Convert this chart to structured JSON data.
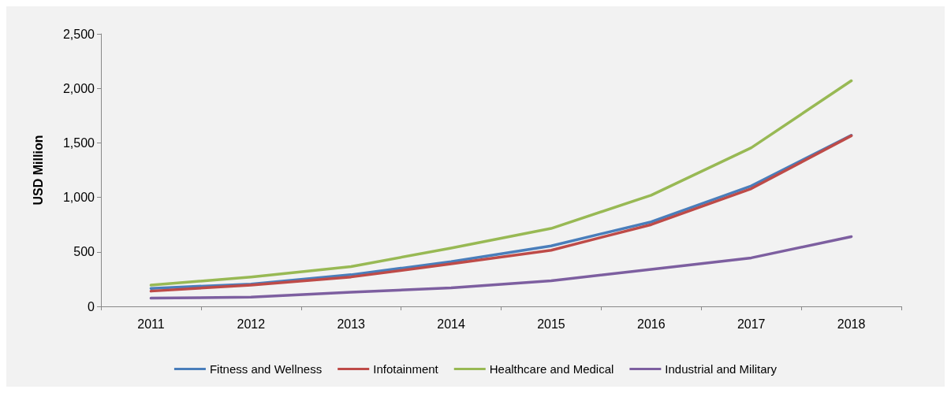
{
  "chart_data": {
    "type": "line",
    "ylabel": "USD Million",
    "categories": [
      "2011",
      "2012",
      "2013",
      "2014",
      "2015",
      "2016",
      "2017",
      "2018"
    ],
    "series": [
      {
        "name": "Fitness and Wellness",
        "color": "#4a7ebb",
        "values": [
          165,
          205,
          290,
          410,
          555,
          775,
          1105,
          1570
        ]
      },
      {
        "name": "Infotainment",
        "color": "#be4b48",
        "values": [
          140,
          195,
          270,
          390,
          515,
          750,
          1080,
          1565
        ]
      },
      {
        "name": "Healthcare and Medical",
        "color": "#98b954",
        "values": [
          195,
          270,
          365,
          535,
          715,
          1020,
          1455,
          2070
        ]
      },
      {
        "name": "Industrial and Military",
        "color": "#7d5fa0",
        "values": [
          75,
          85,
          130,
          170,
          235,
          340,
          445,
          640
        ]
      }
    ],
    "ylim": [
      0,
      2500
    ],
    "yticks": [
      0,
      500,
      {
        "value": 1000,
        "label": "1,000"
      },
      {
        "value": 1500,
        "label": "1,500"
      },
      {
        "value": 2000,
        "label": "2,000"
      },
      {
        "value": 2500,
        "label": "2,500"
      }
    ],
    "grid": false,
    "legend": "bottom",
    "marker": "none",
    "line_style": "solid"
  }
}
